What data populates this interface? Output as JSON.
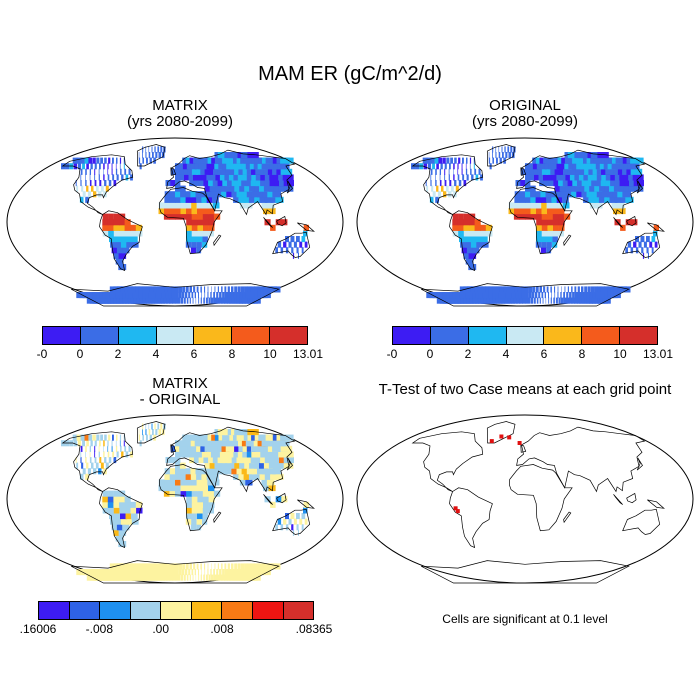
{
  "title": "MAM ER (gC/m^2/d)",
  "panels": {
    "tl": {
      "line1": "MATRIX",
      "line2": "(yrs 2080-2099)"
    },
    "tr": {
      "line1": "ORIGINAL",
      "line2": "(yrs 2080-2099)"
    },
    "bl": {
      "line1": "MATRIX",
      "line2": "- ORIGINAL"
    },
    "br": {
      "line1": "T-Test of two Case means at each grid point",
      "line2": ""
    }
  },
  "colorbar_top": {
    "colors": [
      "#3d1cf3",
      "#3b6de6",
      "#1fb8f1",
      "#c9e9f3",
      "#fab81b",
      "#f45b1c",
      "#d52f2b"
    ],
    "labels": [
      "-0",
      "0",
      "2",
      "4",
      "6",
      "8",
      "10",
      "13.01"
    ]
  },
  "colorbar_diff": {
    "colors": [
      "#3d1cf3",
      "#2e62e6",
      "#1e90f0",
      "#a3d2ec",
      "#fdf3a0",
      "#fbb917",
      "#f87a15",
      "#ee1512",
      "#d52f2b"
    ],
    "labels": [
      ".16006",
      "-.008",
      ".00",
      ".008",
      ".08365"
    ]
  },
  "footnote": "Cells are significant at 0.1 level",
  "significance_marker_color": "#e01010"
}
